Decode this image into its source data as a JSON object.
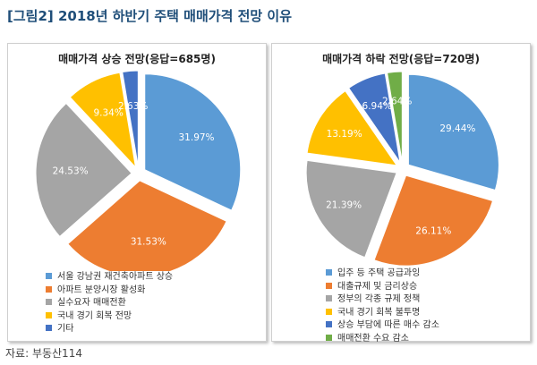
{
  "title": "[그림2] 2018년 하반기 주택 매매가격 전망 이유",
  "source": "자료: 부동산114",
  "chart_data": [
    {
      "type": "pie",
      "title": "매매가격 상승 전망(응답=685명)",
      "categories": [
        "서울 강남권 재건축아파트 상승",
        "아파트 분양시장 활성화",
        "실수요자 매매전환",
        "국내 경기 회복 전망",
        "기타"
      ],
      "values": [
        31.97,
        31.53,
        24.53,
        9.34,
        2.63
      ],
      "labels": [
        "31.97%",
        "31.53%",
        "24.53%",
        "9.34%",
        "2.63%"
      ],
      "colors": [
        "#5b9bd5",
        "#ed7d31",
        "#a5a5a5",
        "#ffc000",
        "#4472c4"
      ],
      "legend": "bottom"
    },
    {
      "type": "pie",
      "title": "매매가격 하락 전망(응답=720명)",
      "categories": [
        "입주 등 주택 공급과잉",
        "대출규제 및 금리상승",
        "정부의 각종 규제 정책",
        "국내 경기 회복 불투명",
        "상승 부담에 따른 매수 감소",
        "매매전환 수요 감소"
      ],
      "values": [
        29.44,
        26.11,
        21.39,
        13.19,
        6.94,
        2.64
      ],
      "labels": [
        "29.44%",
        "26.11%",
        "21.39%",
        "13.19%",
        "6.94%",
        "2.64%"
      ],
      "colors": [
        "#5b9bd5",
        "#ed7d31",
        "#a5a5a5",
        "#ffc000",
        "#4472c4",
        "#70ad47"
      ],
      "legend": "bottom"
    }
  ]
}
